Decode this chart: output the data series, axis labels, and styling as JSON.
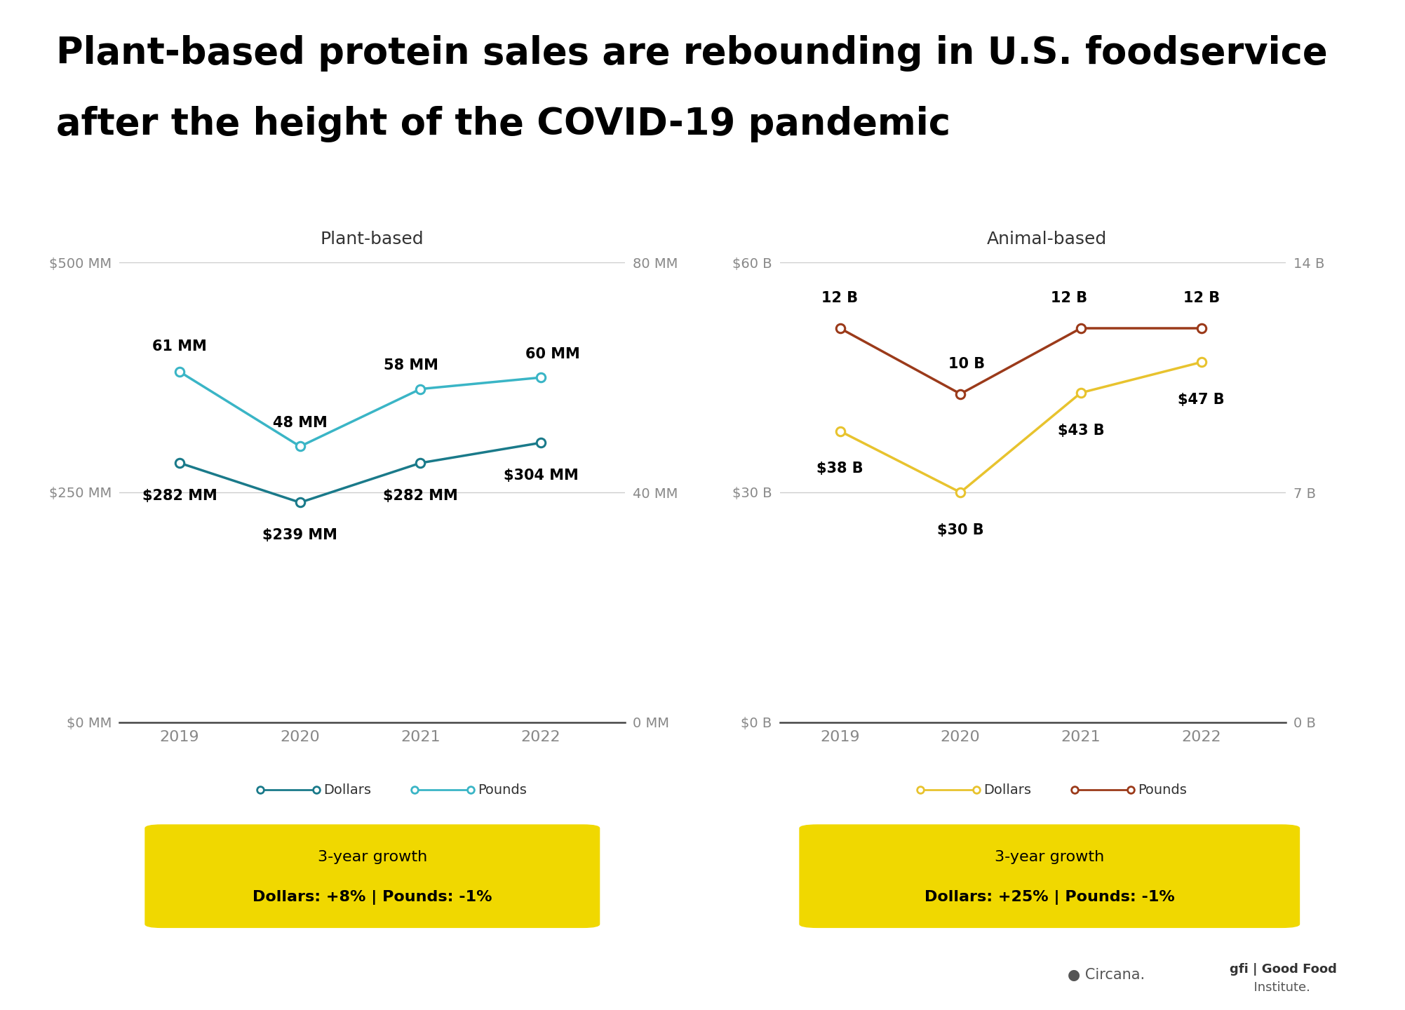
{
  "title_line1": "Plant-based protein sales are rebounding in U.S. foodservice",
  "title_line2": "after the height of the COVID-19 pandemic",
  "years": [
    2019,
    2020,
    2021,
    2022
  ],
  "plant_dollars": [
    282,
    239,
    282,
    304
  ],
  "plant_pounds": [
    61,
    48,
    58,
    60
  ],
  "animal_dollars": [
    38,
    30,
    43,
    47
  ],
  "animal_pounds": [
    12,
    10,
    12,
    12
  ],
  "plant_dollar_labels": [
    "$282 MM",
    "$239 MM",
    "$282 MM",
    "$304 MM"
  ],
  "plant_pound_labels": [
    "61 MM",
    "48 MM",
    "58 MM",
    "60 MM"
  ],
  "animal_dollar_labels": [
    "$38 B",
    "$30 B",
    "$43 B",
    "$47 B"
  ],
  "animal_pound_labels": [
    "12 B",
    "10 B",
    "12 B",
    "12 B"
  ],
  "plant_subtitle": "Plant-based",
  "animal_subtitle": "Animal-based",
  "plant_dollar_color": "#1a7a8a",
  "plant_pound_color": "#3ab5c6",
  "animal_dollar_color": "#e8c32e",
  "animal_pound_color": "#9b3a1a",
  "plant_yleft_ticks": [
    "$0 MM",
    "$250 MM",
    "$500 MM"
  ],
  "plant_yright_ticks": [
    "0 MM",
    "40 MM",
    "80 MM"
  ],
  "animal_yleft_ticks": [
    "$0 B",
    "$30 B",
    "$60 B"
  ],
  "animal_yright_ticks": [
    "0 B",
    "7 B",
    "14 B"
  ],
  "background_color": "#ffffff",
  "title_color": "#000000",
  "subtitle_color": "#333333",
  "label_bold_color": "#000000",
  "axis_tick_color": "#888888",
  "grid_color": "#cccccc",
  "yellow_rect_color": "#f0d800",
  "growth_box_color": "#f0d800",
  "growth_text_color": "#000000"
}
